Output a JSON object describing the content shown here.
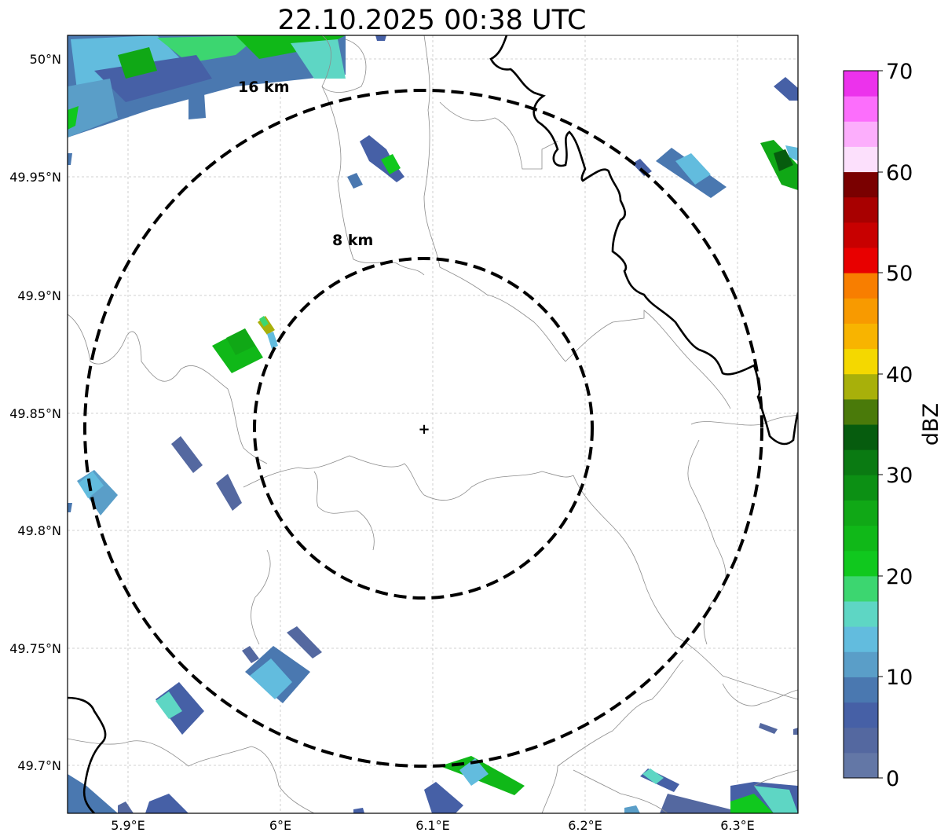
{
  "title": "22.10.2025 00:38 UTC",
  "map": {
    "x_ticks": [
      "5.9°E",
      "6°E",
      "6.1°E",
      "6.2°E",
      "6.3°E"
    ],
    "y_ticks": [
      "50°N",
      "49.95°N",
      "49.9°N",
      "49.85°N",
      "49.8°N",
      "49.75°N",
      "49.7°N"
    ],
    "ring_labels": [
      "8 km",
      "16 km"
    ],
    "center_marker": "+"
  },
  "colorbar": {
    "label": "dBZ",
    "ticks": [
      "0",
      "10",
      "20",
      "30",
      "40",
      "50",
      "60",
      "70"
    ],
    "colors": [
      "#6377a6",
      "#5468a0",
      "#4660a6",
      "#4a78b0",
      "#5a9ec8",
      "#62bcde",
      "#5ed6c4",
      "#3cd670",
      "#10c81e",
      "#10b818",
      "#10a816",
      "#0c9014",
      "#0a7a12",
      "#065c0e",
      "#4a7a0a",
      "#a8b00a",
      "#f4d800",
      "#f8b400",
      "#f89a00",
      "#f87e00",
      "#e80000",
      "#c80000",
      "#a80000",
      "#7a0000",
      "#fce0fc",
      "#fcaefc",
      "#fc6efc",
      "#ec32ec"
    ],
    "range": [
      0,
      70
    ]
  }
}
